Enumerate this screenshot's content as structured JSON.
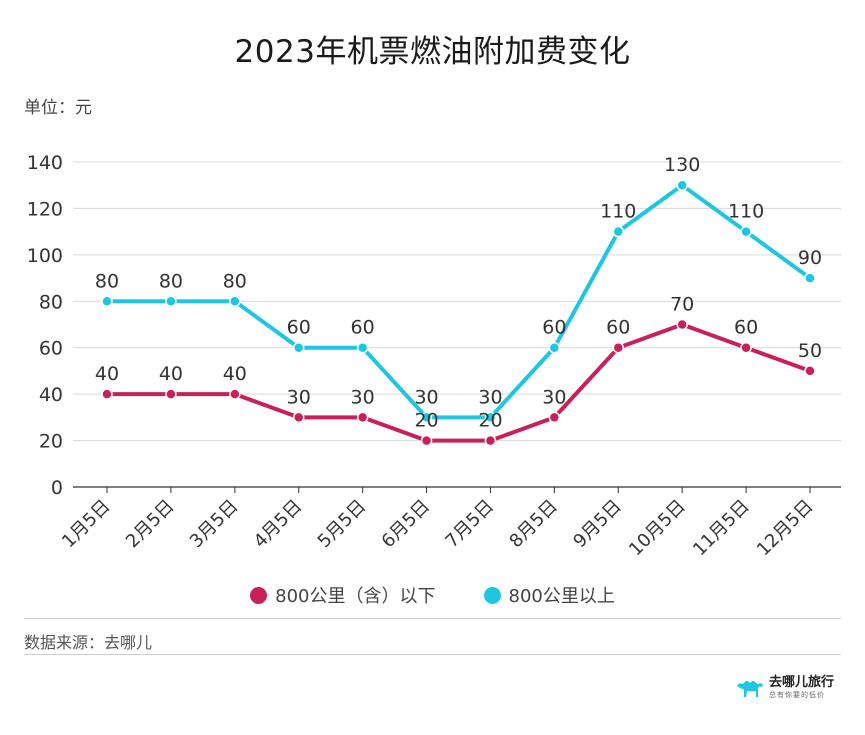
{
  "colors": {
    "series1": "#c8205a",
    "series2": "#1ec6e0",
    "grid": "#d9d9d9",
    "text": "#333333"
  },
  "unit_label": "单位：元",
  "source_label": "数据来源：去哪儿",
  "logo": {
    "icon": "camel-icon",
    "name": "去哪儿旅行",
    "tagline": "总有你要的低价"
  },
  "chart_data": {
    "type": "line",
    "title": "2023年机票燃油附加费变化",
    "xlabel": "",
    "ylabel": "单位：元",
    "categories": [
      "1月5日",
      "2月5日",
      "3月5日",
      "4月5日",
      "5月5日",
      "6月5日",
      "7月5日",
      "8月5日",
      "9月5日",
      "10月5日",
      "11月5日",
      "12月5日"
    ],
    "ylim": [
      0,
      140
    ],
    "yticks": [
      0,
      20,
      40,
      60,
      80,
      100,
      120,
      140
    ],
    "grid": true,
    "legend_position": "bottom",
    "series": [
      {
        "name": "800公里（含）以下",
        "color": "#c8205a",
        "values": [
          40,
          40,
          40,
          30,
          30,
          20,
          20,
          30,
          60,
          70,
          60,
          50
        ]
      },
      {
        "name": "800公里以上",
        "color": "#1ec6e0",
        "values": [
          80,
          80,
          80,
          60,
          60,
          30,
          30,
          60,
          110,
          130,
          110,
          90
        ]
      }
    ]
  }
}
